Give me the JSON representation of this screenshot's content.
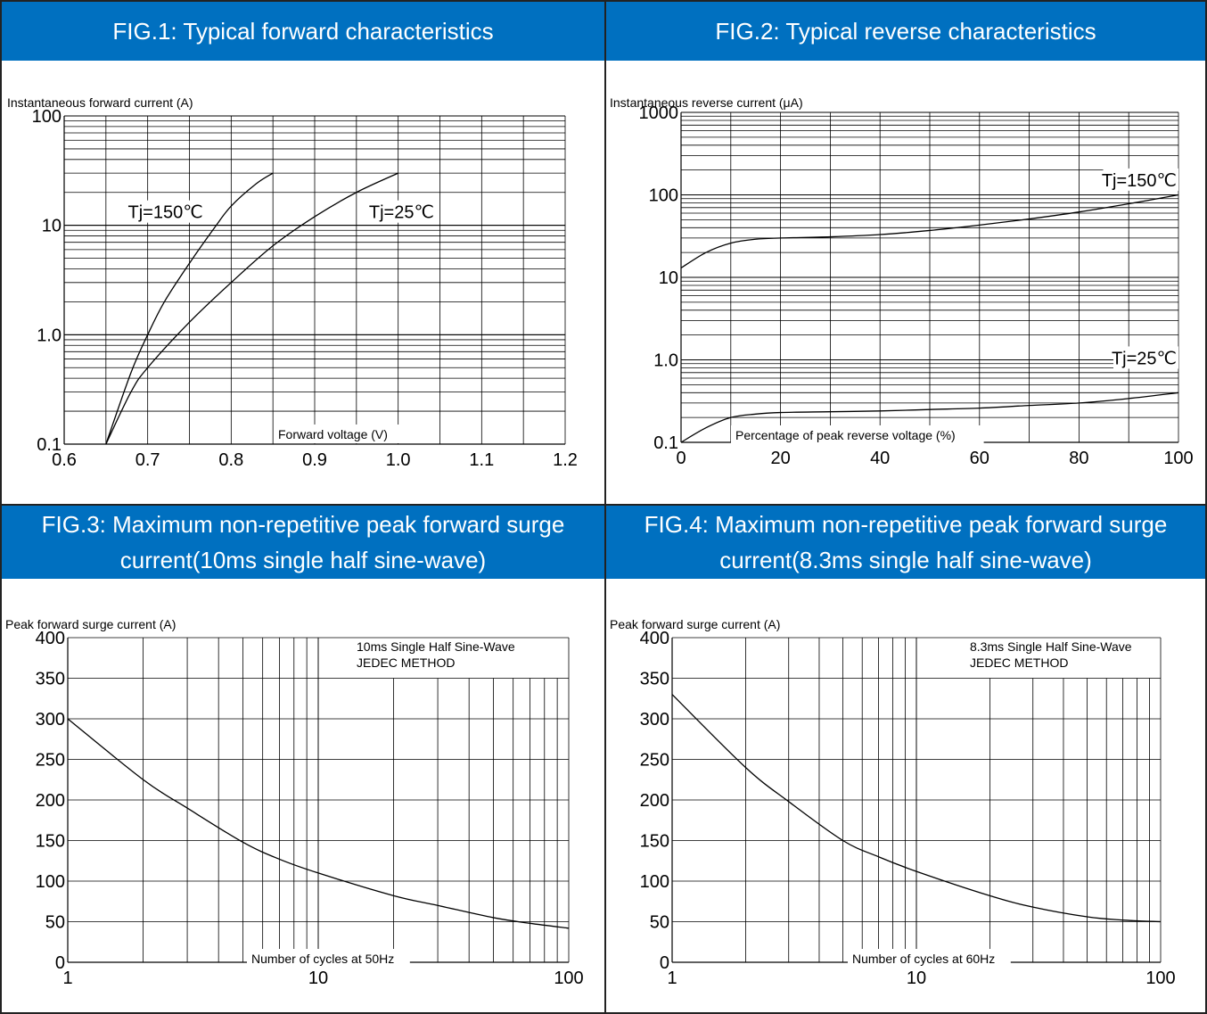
{
  "charts": [
    {
      "header": "FIG.1: Typical forward characteristics",
      "chart_data": {
        "type": "line",
        "xlabel": "Forward voltage (V)",
        "ylabel": "Instantaneous forward current (A)",
        "xscale": "linear",
        "yscale": "log",
        "xlim": [
          0.6,
          1.2
        ],
        "ylim": [
          0.1,
          100
        ],
        "x_ticks": [
          "0.6",
          "0.7",
          "0.8",
          "0.9",
          "1.0",
          "1.1",
          "1.2"
        ],
        "y_ticks": [
          "0.1",
          "1.0",
          "10",
          "100"
        ],
        "grid": true,
        "series": [
          {
            "name": "Tj=150℃",
            "x": [
              0.65,
              0.68,
              0.7,
              0.72,
              0.75,
              0.78,
              0.8,
              0.83,
              0.85
            ],
            "y": [
              0.1,
              0.45,
              1.0,
              2.0,
              4.5,
              9.5,
              15,
              24,
              30
            ]
          },
          {
            "name": "Tj=25℃",
            "x": [
              0.65,
              0.68,
              0.7,
              0.75,
              0.8,
              0.85,
              0.9,
              0.95,
              1.0
            ],
            "y": [
              0.1,
              0.3,
              0.5,
              1.3,
              3.0,
              6.5,
              12,
              20,
              30
            ]
          }
        ]
      }
    },
    {
      "header": "FIG.2: Typical reverse characteristics",
      "chart_data": {
        "type": "line",
        "xlabel": "Percentage of peak reverse voltage (%)",
        "ylabel": "Instantaneous reverse current (μA)",
        "xscale": "linear",
        "yscale": "log",
        "xlim": [
          0,
          100
        ],
        "ylim": [
          0.1,
          1000
        ],
        "x_ticks": [
          "0",
          "20",
          "40",
          "60",
          "80",
          "100"
        ],
        "y_ticks": [
          "0.1",
          "1.0",
          "10",
          "100",
          "1000"
        ],
        "grid": true,
        "series": [
          {
            "name": "Tj=150℃",
            "x": [
              0,
              5,
              10,
              15,
              20,
              30,
              40,
              50,
              60,
              70,
              80,
              90,
              100
            ],
            "y": [
              13,
              20,
              26,
              29,
              30,
              31,
              33,
              37,
              43,
              51,
              62,
              78,
              100
            ]
          },
          {
            "name": "Tj=25℃",
            "x": [
              0,
              5,
              10,
              15,
              20,
              30,
              40,
              50,
              60,
              70,
              80,
              90,
              100
            ],
            "y": [
              0.1,
              0.15,
              0.2,
              0.22,
              0.23,
              0.235,
              0.24,
              0.25,
              0.26,
              0.28,
              0.3,
              0.34,
              0.4
            ]
          }
        ]
      }
    },
    {
      "header": "FIG.3: Maximum non-repetitive peak forward surge current(10ms single half sine-wave)",
      "header_lines": [
        "FIG.3: Maximum non-repetitive peak forward surge",
        "current(10ms single half sine-wave)"
      ],
      "note_lines": [
        "10ms Single Half Sine-Wave",
        "JEDEC METHOD"
      ],
      "chart_data": {
        "type": "line",
        "xlabel": "Number of cycles at 50Hz",
        "ylabel": "Peak forward surge current (A)",
        "xscale": "log",
        "yscale": "linear",
        "xlim": [
          1,
          100
        ],
        "ylim": [
          0,
          400
        ],
        "x_ticks": [
          "1",
          "10",
          "100"
        ],
        "y_ticks": [
          "0",
          "50",
          "100",
          "150",
          "200",
          "250",
          "300",
          "350",
          "400"
        ],
        "grid": true,
        "series": [
          {
            "x": [
              1,
              2,
              3,
              5,
              7,
              10,
              20,
              30,
              50,
              70,
              100
            ],
            "y": [
              300,
              225,
              190,
              148,
              127,
              110,
              82,
              70,
              55,
              48,
              42
            ]
          }
        ]
      }
    },
    {
      "header": "FIG.4: Maximum non-repetitive peak forward surge current(8.3ms single half sine-wave)",
      "header_lines": [
        "FIG.4: Maximum non-repetitive peak forward surge",
        "current(8.3ms single half sine-wave)"
      ],
      "note_lines": [
        "8.3ms Single Half Sine-Wave",
        "JEDEC METHOD"
      ],
      "chart_data": {
        "type": "line",
        "xlabel": "Number of cycles at 60Hz",
        "ylabel": "Peak forward surge current (A)",
        "xscale": "log",
        "yscale": "linear",
        "xlim": [
          1,
          100
        ],
        "ylim": [
          0,
          400
        ],
        "x_ticks": [
          "1",
          "10",
          "100"
        ],
        "y_ticks": [
          "0",
          "50",
          "100",
          "150",
          "200",
          "250",
          "300",
          "350",
          "400"
        ],
        "grid": true,
        "series": [
          {
            "x": [
              1,
              2,
              3,
              5,
              7,
              10,
              20,
              30,
              50,
              70,
              100
            ],
            "y": [
              330,
              240,
              198,
              150,
              130,
              112,
              82,
              68,
              56,
              52,
              50
            ]
          }
        ]
      }
    }
  ]
}
